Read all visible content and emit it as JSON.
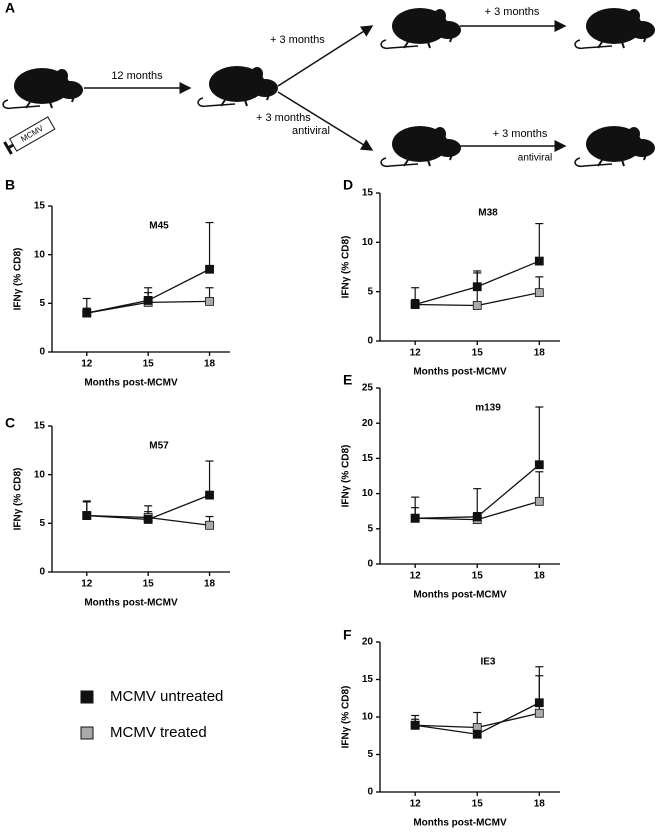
{
  "diagram": {
    "panel": "A",
    "syringe_label": "MCMV",
    "first_step": "12 months",
    "upper_branch": "+ 3 months",
    "lower_branch": [
      "+ 3 months",
      "antiviral"
    ],
    "upper_follow": "+ 3 months",
    "lower_follow": [
      "+  3  months",
      "antiviral"
    ]
  },
  "legend": [
    {
      "name": "MCMV untreated",
      "color": "#111111"
    },
    {
      "name": "MCMV treated",
      "color": "#aaaaaa"
    }
  ],
  "chart_data": [
    {
      "type": "line",
      "panel": "B",
      "title": "M45",
      "x_label": "Months post-MCMV",
      "y_label": "IFNγ (% CD8)",
      "x": [
        12,
        15,
        18
      ],
      "xlim": [
        10.3,
        19
      ],
      "xticks": [
        12,
        15,
        18
      ],
      "ylim": [
        0,
        15
      ],
      "yticks": [
        0,
        5,
        10,
        15
      ],
      "series": [
        {
          "color": "#111111",
          "values": [
            4.0,
            5.3,
            8.5
          ],
          "errors": [
            1.5,
            1.3,
            4.8
          ]
        },
        {
          "color": "#aaaaaa",
          "values": [
            4.0,
            5.1,
            5.2
          ],
          "errors": [
            0.5,
            1.0,
            1.4
          ]
        }
      ]
    },
    {
      "type": "line",
      "panel": "D",
      "title": "M38",
      "x_label": "Months post-MCMV",
      "y_label": "IFNγ (% CD8)",
      "x": [
        12,
        15,
        18
      ],
      "xlim": [
        10.3,
        19
      ],
      "xticks": [
        12,
        15,
        18
      ],
      "ylim": [
        0,
        15
      ],
      "yticks": [
        0,
        5,
        10,
        15
      ],
      "series": [
        {
          "color": "#111111",
          "values": [
            3.7,
            5.5,
            8.1
          ],
          "errors": [
            1.7,
            1.6,
            3.8
          ]
        },
        {
          "color": "#aaaaaa",
          "values": [
            3.7,
            3.6,
            4.9
          ],
          "errors": [
            0.5,
            3.3,
            1.6
          ]
        }
      ]
    },
    {
      "type": "line",
      "panel": "C",
      "title": "M57",
      "x_label": "Months post-MCMV",
      "y_label": "IFNγ (% CD8)",
      "x": [
        12,
        15,
        18
      ],
      "xlim": [
        10.3,
        19
      ],
      "xticks": [
        12,
        15,
        18
      ],
      "ylim": [
        0,
        15
      ],
      "yticks": [
        0,
        5,
        10,
        15
      ],
      "series": [
        {
          "color": "#111111",
          "values": [
            5.8,
            5.4,
            7.9
          ],
          "errors": [
            1.5,
            1.4,
            3.5
          ]
        },
        {
          "color": "#aaaaaa",
          "values": [
            5.8,
            5.6,
            4.8
          ],
          "errors": [
            1.4,
            0.6,
            0.9
          ]
        }
      ]
    },
    {
      "type": "line",
      "panel": "E",
      "title": "m139",
      "x_label": "Months post-MCMV",
      "y_label": "IFNγ (% CD8)",
      "x": [
        12,
        15,
        18
      ],
      "xlim": [
        10.3,
        19
      ],
      "xticks": [
        12,
        15,
        18
      ],
      "ylim": [
        0,
        25
      ],
      "yticks": [
        0,
        5,
        10,
        15,
        20,
        25
      ],
      "series": [
        {
          "color": "#111111",
          "values": [
            6.5,
            6.7,
            14.1
          ],
          "errors": [
            3.0,
            4.0,
            8.2
          ]
        },
        {
          "color": "#aaaaaa",
          "values": [
            6.5,
            6.3,
            8.9
          ],
          "errors": [
            1.5,
            1.0,
            4.2
          ]
        }
      ]
    },
    {
      "type": "line",
      "panel": "F",
      "title": "IE3",
      "x_label": "Months post-MCMV",
      "y_label": "IFNγ (% CD8)",
      "x": [
        12,
        15,
        18
      ],
      "xlim": [
        10.3,
        19
      ],
      "xticks": [
        12,
        15,
        18
      ],
      "ylim": [
        0,
        20
      ],
      "yticks": [
        0,
        5,
        10,
        15,
        20
      ],
      "series": [
        {
          "color": "#111111",
          "values": [
            8.9,
            7.7,
            11.9
          ],
          "errors": [
            1.3,
            0.5,
            4.8
          ]
        },
        {
          "color": "#aaaaaa",
          "values": [
            8.9,
            8.6,
            10.5
          ],
          "errors": [
            0.8,
            2.0,
            5.0
          ]
        }
      ]
    }
  ]
}
